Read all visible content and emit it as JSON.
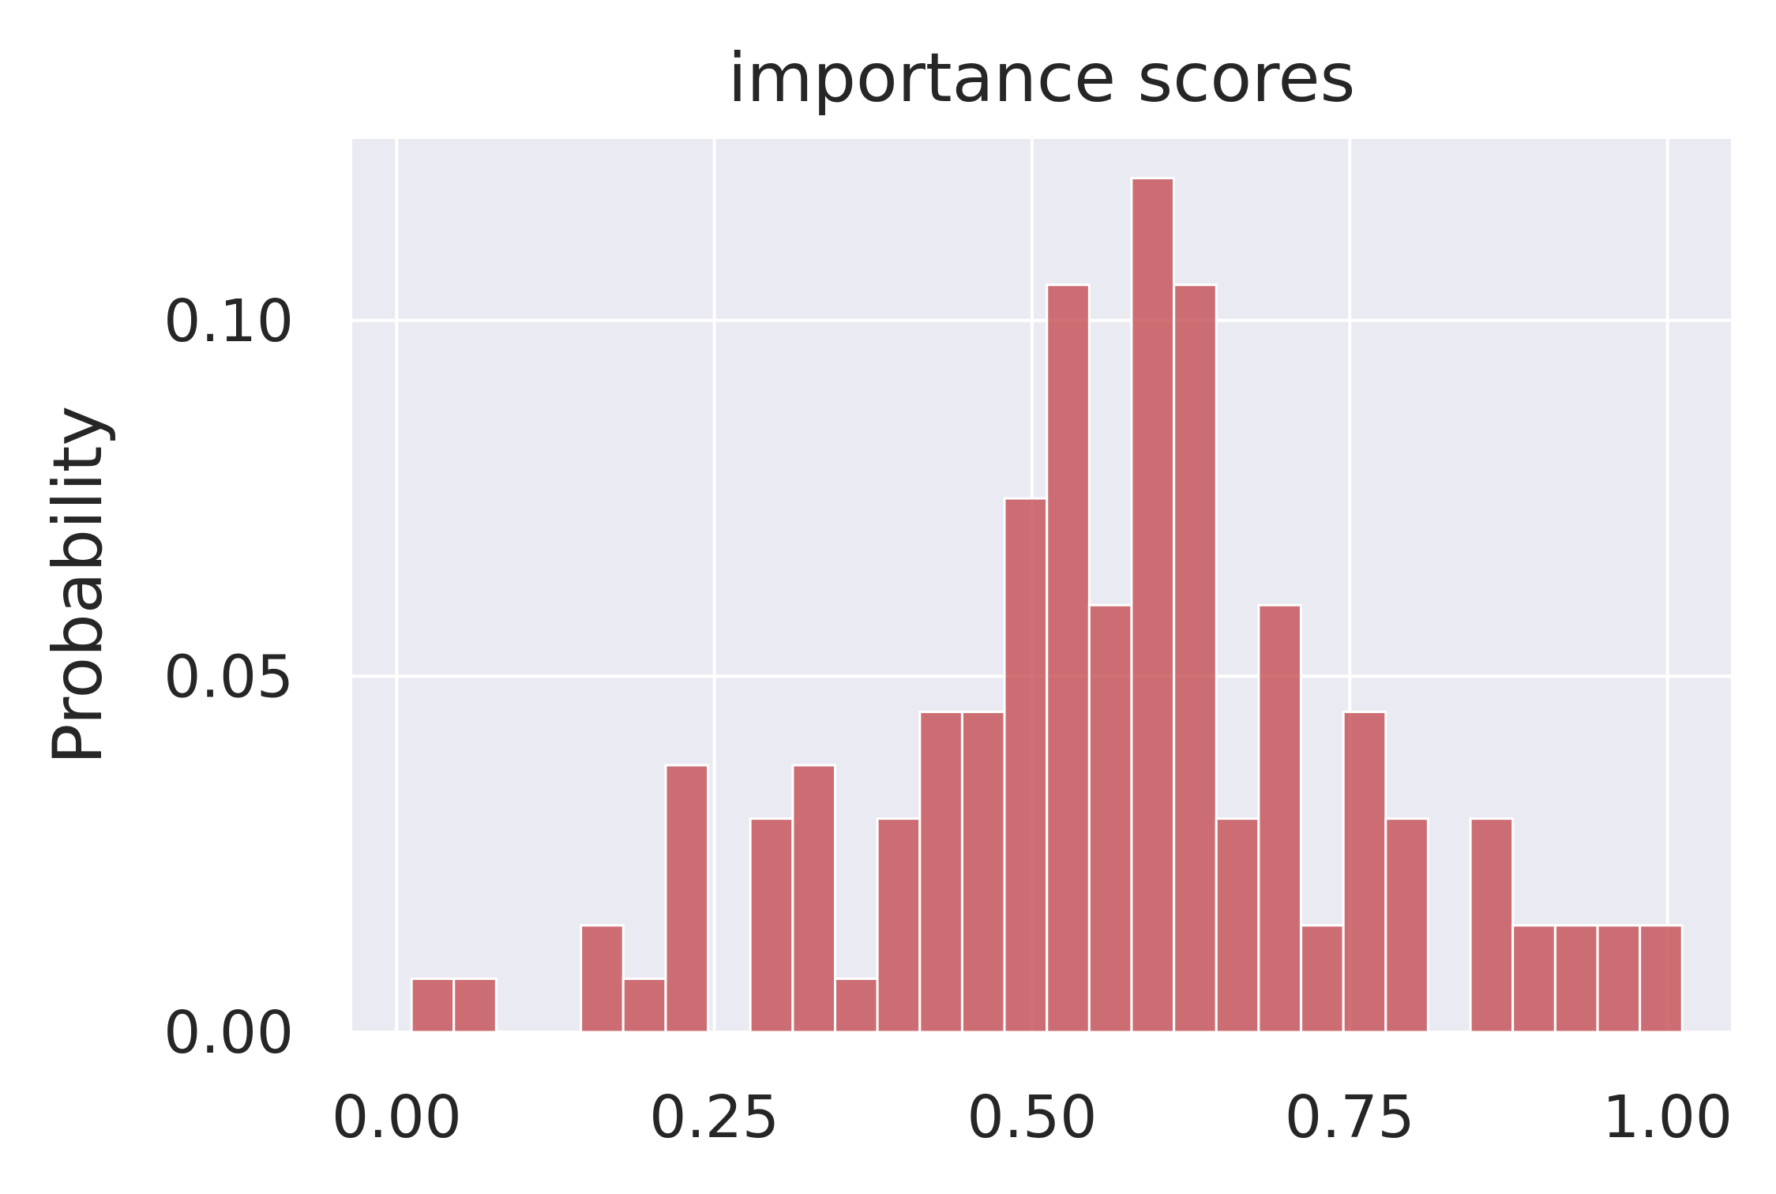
{
  "chart_data": {
    "type": "bar",
    "title": "importance scores",
    "xlabel": "",
    "ylabel": "Probability",
    "xlim": [
      -0.035,
      1.05
    ],
    "ylim": [
      0,
      0.1255
    ],
    "xticks": [
      0.0,
      0.25,
      0.5,
      0.75,
      1.0
    ],
    "xtick_labels": [
      "0.00",
      "0.25",
      "0.50",
      "0.75",
      "1.00"
    ],
    "yticks": [
      0.0,
      0.05,
      0.1
    ],
    "ytick_labels": [
      "0.00",
      "0.05",
      "0.10"
    ],
    "grid": true,
    "background_color": "#eaeaf2",
    "bar_color": "#c44e52",
    "bin_width": 0.0333,
    "bins": [
      {
        "x0": 0.0117,
        "value": 0.0075
      },
      {
        "x0": 0.045,
        "value": 0.0075
      },
      {
        "x0": 0.145,
        "value": 0.015
      },
      {
        "x0": 0.1783,
        "value": 0.0075
      },
      {
        "x0": 0.2117,
        "value": 0.0375
      },
      {
        "x0": 0.2783,
        "value": 0.03
      },
      {
        "x0": 0.3117,
        "value": 0.0375
      },
      {
        "x0": 0.345,
        "value": 0.0075
      },
      {
        "x0": 0.3783,
        "value": 0.03
      },
      {
        "x0": 0.4117,
        "value": 0.045
      },
      {
        "x0": 0.445,
        "value": 0.045
      },
      {
        "x0": 0.4783,
        "value": 0.075
      },
      {
        "x0": 0.5117,
        "value": 0.105
      },
      {
        "x0": 0.545,
        "value": 0.06
      },
      {
        "x0": 0.5783,
        "value": 0.12
      },
      {
        "x0": 0.6117,
        "value": 0.105
      },
      {
        "x0": 0.645,
        "value": 0.03
      },
      {
        "x0": 0.6783,
        "value": 0.06
      },
      {
        "x0": 0.7117,
        "value": 0.015
      },
      {
        "x0": 0.745,
        "value": 0.045
      },
      {
        "x0": 0.7783,
        "value": 0.03
      },
      {
        "x0": 0.845,
        "value": 0.03
      },
      {
        "x0": 0.8783,
        "value": 0.015
      },
      {
        "x0": 0.9117,
        "value": 0.015
      },
      {
        "x0": 0.945,
        "value": 0.015
      },
      {
        "x0": 0.9783,
        "value": 0.015
      }
    ]
  }
}
